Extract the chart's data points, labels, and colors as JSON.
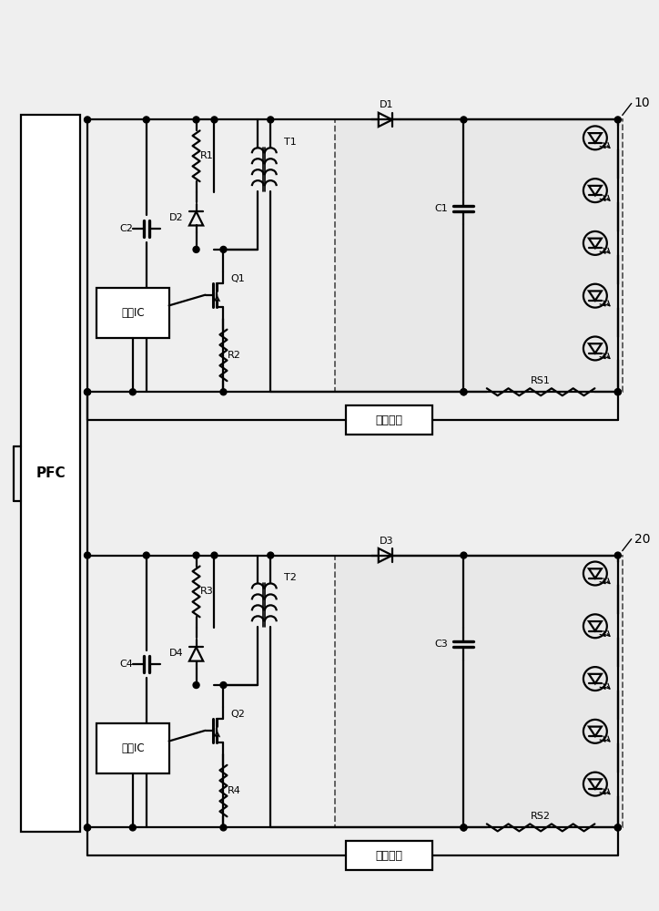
{
  "bg": "#efefef",
  "lc": "#000000",
  "lw": 1.6,
  "label_pfc": "PFC",
  "label_ic": "控制IC",
  "label_fb": "反馈电路",
  "label_10": "10",
  "label_20": "20",
  "fig_w": 7.24,
  "fig_h": 10.0,
  "dpi": 100
}
